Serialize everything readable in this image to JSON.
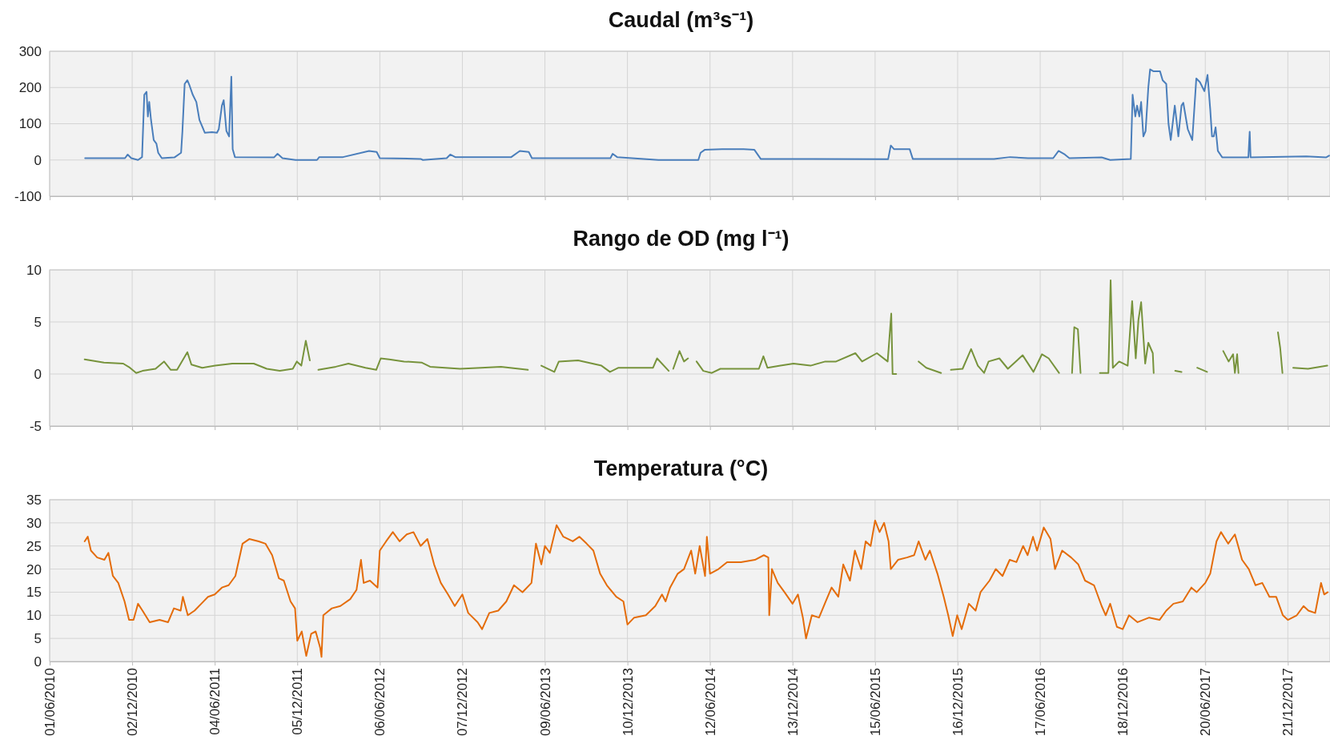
{
  "chart_data": [
    {
      "type": "line",
      "title": "Caudal (m³s⁻¹)",
      "tick_labels": "y",
      "grid": true,
      "xlim": [
        "2010-06-01",
        "2018-03-25"
      ],
      "ylim": [
        -100,
        300
      ],
      "yticks": [
        -100,
        0,
        100,
        200,
        300
      ],
      "xticks": [
        {
          "value": "2010-06-01",
          "label": null
        },
        {
          "value": "2010-12-02",
          "label": null
        },
        {
          "value": "2011-06-04",
          "label": null
        },
        {
          "value": "2011-12-05",
          "label": null
        },
        {
          "value": "2012-06-06",
          "label": null
        },
        {
          "value": "2012-12-07",
          "label": null
        },
        {
          "value": "2013-06-09",
          "label": null
        },
        {
          "value": "2013-12-10",
          "label": null
        },
        {
          "value": "2014-06-12",
          "label": null
        },
        {
          "value": "2014-12-13",
          "label": null
        },
        {
          "value": "2015-06-15",
          "label": null
        },
        {
          "value": "2015-12-16",
          "label": null
        },
        {
          "value": "2016-06-17",
          "label": null
        },
        {
          "value": "2016-12-18",
          "label": null
        },
        {
          "value": "2017-06-20",
          "label": null
        },
        {
          "value": "2017-12-21",
          "label": null
        }
      ],
      "series": [
        {
          "color": "#4a7ebb",
          "x": [
            "2010-08-19",
            "2010-11-16",
            "2010-11-22",
            "2010-11-30",
            "2010-12-15",
            "2010-12-24",
            "2010-12-29",
            "2011-01-03",
            "2011-01-06",
            "2011-01-09",
            "2011-01-13",
            "2011-01-19",
            "2011-01-25",
            "2011-01-29",
            "2011-02-06",
            "2011-03-06",
            "2011-03-21",
            "2011-03-24",
            "2011-03-29",
            "2011-04-04",
            "2011-04-09",
            "2011-04-16",
            "2011-04-24",
            "2011-05-01",
            "2011-05-13",
            "2011-05-29",
            "2011-06-09",
            "2011-06-13",
            "2011-06-20",
            "2011-06-24",
            "2011-06-30",
            "2011-07-06",
            "2011-07-11",
            "2011-07-14",
            "2011-07-19",
            "2011-10-14",
            "2011-10-22",
            "2011-11-02",
            "2011-12-01",
            "2012-01-18",
            "2012-01-23",
            "2012-03-16",
            "2012-05-13",
            "2012-05-30",
            "2012-06-06",
            "2012-09-05",
            "2012-09-10",
            "2012-11-02",
            "2012-11-10",
            "2012-11-21",
            "2013-03-26",
            "2013-04-14",
            "2013-05-04",
            "2013-05-11",
            "2013-11-02",
            "2013-11-07",
            "2013-11-17",
            "2014-02-17",
            "2014-05-17",
            "2014-05-22",
            "2014-05-31",
            "2014-07-09",
            "2014-08-26",
            "2014-09-19",
            "2014-10-03",
            "2015-07-14",
            "2015-07-20",
            "2015-07-27",
            "2015-08-31",
            "2015-09-07",
            "2016-03-06",
            "2016-04-11",
            "2016-05-21",
            "2016-07-16",
            "2016-07-28",
            "2016-08-11",
            "2016-08-21",
            "2016-11-01",
            "2016-11-20",
            "2017-01-05",
            "2017-01-09",
            "2017-01-15",
            "2017-01-19",
            "2017-01-24",
            "2017-01-28",
            "2017-02-02",
            "2017-02-07",
            "2017-02-13",
            "2017-02-17",
            "2017-02-24",
            "2017-03-11",
            "2017-03-17",
            "2017-03-25",
            "2017-03-30",
            "2017-04-04",
            "2017-04-13",
            "2017-04-21",
            "2017-04-28",
            "2017-05-02",
            "2017-05-12",
            "2017-05-22",
            "2017-05-31",
            "2017-06-08",
            "2017-06-18",
            "2017-06-25",
            "2017-07-01",
            "2017-07-05",
            "2017-07-09",
            "2017-07-13",
            "2017-07-18",
            "2017-07-28",
            "2017-09-24",
            "2017-09-27",
            "2017-09-29",
            "2018-01-31",
            "2018-03-16",
            "2018-03-23"
          ],
          "values": [
            5,
            5,
            15,
            5,
            0,
            8,
            180,
            188,
            120,
            160,
            110,
            55,
            45,
            20,
            5,
            7,
            20,
            80,
            210,
            220,
            205,
            180,
            160,
            110,
            75,
            77,
            75,
            85,
            150,
            165,
            80,
            65,
            230,
            30,
            8,
            7,
            17,
            5,
            0,
            0,
            8,
            8,
            25,
            22,
            5,
            3,
            0,
            5,
            15,
            8,
            8,
            25,
            22,
            5,
            5,
            17,
            8,
            0,
            0,
            20,
            28,
            30,
            30,
            28,
            3,
            2,
            40,
            30,
            30,
            3,
            3,
            8,
            5,
            5,
            25,
            15,
            5,
            7,
            0,
            3,
            180,
            120,
            150,
            120,
            160,
            65,
            80,
            200,
            250,
            245,
            245,
            220,
            210,
            100,
            55,
            150,
            65,
            150,
            158,
            85,
            55,
            225,
            215,
            190,
            235,
            140,
            65,
            65,
            90,
            25,
            7,
            7,
            78,
            7,
            10,
            7,
            12
          ]
        }
      ]
    },
    {
      "type": "line",
      "title": "Rango de OD (mg l⁻¹)",
      "tick_labels": "y",
      "grid": true,
      "xlim": [
        "2010-06-01",
        "2018-03-25"
      ],
      "ylim": [
        -5,
        10
      ],
      "yticks": [
        -5,
        0,
        5,
        10
      ],
      "xticks": [
        {
          "value": "2010-06-01",
          "label": null
        },
        {
          "value": "2010-12-02",
          "label": null
        },
        {
          "value": "2011-06-04",
          "label": null
        },
        {
          "value": "2011-12-05",
          "label": null
        },
        {
          "value": "2012-06-06",
          "label": null
        },
        {
          "value": "2012-12-07",
          "label": null
        },
        {
          "value": "2013-06-09",
          "label": null
        },
        {
          "value": "2013-12-10",
          "label": null
        },
        {
          "value": "2014-06-12",
          "label": null
        },
        {
          "value": "2014-12-13",
          "label": null
        },
        {
          "value": "2015-06-15",
          "label": null
        },
        {
          "value": "2015-12-16",
          "label": null
        },
        {
          "value": "2016-06-17",
          "label": null
        },
        {
          "value": "2016-12-18",
          "label": null
        },
        {
          "value": "2017-06-20",
          "label": null
        },
        {
          "value": "2017-12-21",
          "label": null
        }
      ],
      "series": [
        {
          "color": "#77933c",
          "x": [
            "2010-08-18",
            "2010-09-30",
            "2010-11-12",
            "2010-11-27",
            "2010-12-11",
            "2010-12-25",
            "2011-01-23",
            "2011-02-11",
            "2011-02-26",
            "2011-03-12",
            "2011-04-04",
            "2011-04-13",
            "2011-05-07",
            "2011-06-05",
            "2011-07-13",
            "2011-08-30",
            "2011-09-28",
            "2011-10-27",
            "2011-11-25",
            "2011-12-04",
            "2011-12-14",
            "2011-12-24",
            "2012-01-02",
            "2012-01-11",
            "2012-01-21",
            "2012-02-29",
            "2012-03-28",
            "2012-05-05",
            "2012-05-29",
            "2012-06-08",
            "2012-06-27",
            "2012-07-30",
            "2012-09-07",
            "2012-09-26",
            "2012-12-02",
            "2013-01-18",
            "2013-03-03",
            "2013-05-02",
            "2013-05-16",
            "2013-06-01",
            "2013-06-30",
            "2013-07-10",
            "2013-08-22",
            "2013-10-13",
            "2013-11-01",
            "2013-11-20",
            "2013-12-29",
            "2014-02-05",
            "2014-02-14",
            "2014-03-12",
            "2014-03-17",
            "2014-03-22",
            "2014-04-05",
            "2014-04-15",
            "2014-04-24",
            "2014-05-03",
            "2014-05-13",
            "2014-05-28",
            "2014-06-16",
            "2014-07-05",
            "2014-09-29",
            "2014-10-09",
            "2014-10-18",
            "2014-11-16",
            "2014-12-15",
            "2015-01-22",
            "2015-02-24",
            "2015-03-20",
            "2015-05-02",
            "2015-05-17",
            "2015-06-19",
            "2015-07-13",
            "2015-07-21",
            "2015-07-24",
            "2015-08-01",
            "2015-08-25",
            "2015-09-20",
            "2015-10-07",
            "2015-11-09",
            "2015-11-20",
            "2015-12-01",
            "2015-12-27",
            "2016-01-15",
            "2016-01-30",
            "2016-02-13",
            "2016-02-23",
            "2016-03-18",
            "2016-04-06",
            "2016-05-09",
            "2016-06-02",
            "2016-06-21",
            "2016-07-06",
            "2016-07-29",
            "2016-08-12",
            "2016-08-27",
            "2016-09-01",
            "2016-09-09",
            "2016-09-15",
            "2016-10-10",
            "2016-10-28",
            "2016-11-16",
            "2016-11-21",
            "2016-11-26",
            "2016-12-10",
            "2016-12-29",
            "2017-01-08",
            "2017-01-16",
            "2017-01-22",
            "2017-01-28",
            "2017-02-06",
            "2017-02-13",
            "2017-02-23",
            "2017-02-25",
            "2017-03-20",
            "2017-04-14",
            "2017-04-28",
            "2017-05-15",
            "2017-06-02",
            "2017-06-24",
            "2017-07-12",
            "2017-07-30",
            "2017-08-11",
            "2017-08-21",
            "2017-08-25",
            "2017-08-30",
            "2017-09-02",
            "2017-10-20",
            "2017-11-29",
            "2017-12-04",
            "2017-12-09",
            "2017-12-20",
            "2018-01-02",
            "2018-02-04",
            "2018-03-19"
          ],
          "values": [
            1.4,
            1.1,
            1.0,
            0.6,
            0.1,
            0.3,
            0.5,
            1.2,
            0.4,
            0.4,
            2.1,
            0.9,
            0.6,
            0.8,
            1.0,
            1.0,
            0.5,
            0.3,
            0.5,
            1.2,
            0.8,
            3.2,
            1.3,
            null,
            0.4,
            0.7,
            1.0,
            0.6,
            0.4,
            1.5,
            1.4,
            1.2,
            1.1,
            0.7,
            0.5,
            0.6,
            0.7,
            0.4,
            null,
            0.8,
            0.2,
            1.2,
            1.3,
            0.8,
            0.2,
            0.6,
            0.6,
            0.6,
            1.5,
            0.3,
            null,
            0.5,
            2.2,
            1.2,
            1.5,
            null,
            1.2,
            0.3,
            0.1,
            0.5,
            0.5,
            1.7,
            0.6,
            0.8,
            1.0,
            0.8,
            1.2,
            1.2,
            2.0,
            1.2,
            2.0,
            1.2,
            5.8,
            0,
            0,
            null,
            1.2,
            0.6,
            0.1,
            null,
            0.4,
            0.5,
            2.4,
            0.8,
            0.1,
            1.2,
            1.5,
            0.5,
            1.8,
            0.2,
            1.9,
            1.5,
            0.1,
            null,
            0.1,
            4.5,
            4.3,
            0.1,
            null,
            0.1,
            0.1,
            9.0,
            0.6,
            1.2,
            0.8,
            7.0,
            1.5,
            5.2,
            6.9,
            1.0,
            3.0,
            2.0,
            0.1,
            null,
            0.3,
            0.2,
            null,
            0.6,
            0.2,
            null,
            2.2,
            1.2,
            1.9,
            0.1,
            1.9,
            0.1,
            null,
            4.0,
            2.5,
            0.1,
            null,
            0.6,
            0.5,
            0.8
          ]
        }
      ]
    },
    {
      "type": "line",
      "title": "Temperatura (°C)",
      "grid": true,
      "xlim": [
        "2010-06-01",
        "2018-03-25"
      ],
      "ylim": [
        0,
        35
      ],
      "yticks": [
        0,
        5,
        10,
        15,
        20,
        25,
        30,
        35
      ],
      "xticks": [
        {
          "value": "2010-06-01",
          "label": "01/06/2010"
        },
        {
          "value": "2010-12-02",
          "label": "02/12/2010"
        },
        {
          "value": "2011-06-04",
          "label": "04/06/2011"
        },
        {
          "value": "2011-12-05",
          "label": "05/12/2011"
        },
        {
          "value": "2012-06-06",
          "label": "06/06/2012"
        },
        {
          "value": "2012-12-07",
          "label": "07/12/2012"
        },
        {
          "value": "2013-06-09",
          "label": "09/06/2013"
        },
        {
          "value": "2013-12-10",
          "label": "10/12/2013"
        },
        {
          "value": "2014-06-12",
          "label": "12/06/2014"
        },
        {
          "value": "2014-12-13",
          "label": "13/12/2014"
        },
        {
          "value": "2015-06-15",
          "label": "15/06/2015"
        },
        {
          "value": "2015-12-16",
          "label": "16/12/2015"
        },
        {
          "value": "2016-06-17",
          "label": "17/06/2016"
        },
        {
          "value": "2016-12-18",
          "label": "18/12/2016"
        },
        {
          "value": "2017-06-20",
          "label": "20/06/2017"
        },
        {
          "value": "2017-12-21",
          "label": "21/12/2017"
        }
      ],
      "series": [
        {
          "color": "#e46c0a",
          "x": [
            "2010-08-18",
            "2010-08-25",
            "2010-09-01",
            "2010-09-15",
            "2010-10-01",
            "2010-10-10",
            "2010-10-20",
            "2010-11-01",
            "2010-11-15",
            "2010-11-25",
            "2010-12-05",
            "2010-12-15",
            "2010-12-25",
            "2011-01-10",
            "2011-02-01",
            "2011-02-20",
            "2011-03-05",
            "2011-03-20",
            "2011-03-25",
            "2011-04-05",
            "2011-04-20",
            "2011-05-05",
            "2011-05-20",
            "2011-06-04",
            "2011-06-20",
            "2011-07-05",
            "2011-07-20",
            "2011-08-05",
            "2011-08-20",
            "2011-09-10",
            "2011-09-25",
            "2011-10-10",
            "2011-10-25",
            "2011-11-05",
            "2011-11-20",
            "2011-11-30",
            "2011-12-05",
            "2011-12-15",
            "2011-12-25",
            "2012-01-05",
            "2012-01-15",
            "2012-01-25",
            "2012-01-28",
            "2012-02-01",
            "2012-02-20",
            "2012-03-10",
            "2012-04-01",
            "2012-04-15",
            "2012-04-25",
            "2012-05-01",
            "2012-05-15",
            "2012-06-01",
            "2012-06-06",
            "2012-06-20",
            "2012-07-05",
            "2012-07-20",
            "2012-08-05",
            "2012-08-20",
            "2012-09-05",
            "2012-09-20",
            "2012-10-05",
            "2012-10-20",
            "2012-11-05",
            "2012-11-20",
            "2012-12-07",
            "2012-12-20",
            "2013-01-10",
            "2013-01-20",
            "2013-02-05",
            "2013-02-25",
            "2013-03-15",
            "2013-04-01",
            "2013-04-20",
            "2013-05-10",
            "2013-05-20",
            "2013-06-01",
            "2013-06-09",
            "2013-06-20",
            "2013-07-05",
            "2013-07-20",
            "2013-08-10",
            "2013-08-25",
            "2013-09-10",
            "2013-09-25",
            "2013-10-10",
            "2013-10-25",
            "2013-11-15",
            "2013-12-01",
            "2013-12-10",
            "2013-12-25",
            "2014-01-20",
            "2014-02-10",
            "2014-02-25",
            "2014-03-05",
            "2014-03-15",
            "2014-04-01",
            "2014-04-15",
            "2014-05-01",
            "2014-05-10",
            "2014-05-20",
            "2014-06-01",
            "2014-06-05",
            "2014-06-12",
            "2014-07-01",
            "2014-07-20",
            "2014-08-20",
            "2014-09-20",
            "2014-10-10",
            "2014-10-20",
            "2014-10-22",
            "2014-10-28",
            "2014-11-10",
            "2014-11-25",
            "2014-12-13",
            "2014-12-25",
            "2015-01-05",
            "2015-01-12",
            "2015-01-25",
            "2015-02-10",
            "2015-02-25",
            "2015-03-10",
            "2015-03-25",
            "2015-04-05",
            "2015-04-20",
            "2015-05-01",
            "2015-05-15",
            "2015-05-25",
            "2015-06-05",
            "2015-06-15",
            "2015-06-25",
            "2015-07-05",
            "2015-07-15",
            "2015-07-20",
            "2015-08-05",
            "2015-08-25",
            "2015-09-10",
            "2015-09-20",
            "2015-10-05",
            "2015-10-15",
            "2015-11-01",
            "2015-11-15",
            "2015-11-25",
            "2015-12-05",
            "2015-12-15",
            "2015-12-25",
            "2016-01-10",
            "2016-01-25",
            "2016-02-05",
            "2016-02-25",
            "2016-03-10",
            "2016-03-25",
            "2016-04-10",
            "2016-04-25",
            "2016-05-10",
            "2016-05-20",
            "2016-06-01",
            "2016-06-10",
            "2016-06-25",
            "2016-07-10",
            "2016-07-20",
            "2016-08-05",
            "2016-08-25",
            "2016-09-10",
            "2016-09-25",
            "2016-10-15",
            "2016-11-01",
            "2016-11-10",
            "2016-11-20",
            "2016-12-05",
            "2016-12-18",
            "2017-01-01",
            "2017-01-20",
            "2017-02-15",
            "2017-03-10",
            "2017-03-25",
            "2017-04-10",
            "2017-05-01",
            "2017-05-20",
            "2017-06-01",
            "2017-06-20",
            "2017-07-01",
            "2017-07-15",
            "2017-07-25",
            "2017-08-10",
            "2017-08-25",
            "2017-09-10",
            "2017-09-25",
            "2017-10-10",
            "2017-10-25",
            "2017-11-10",
            "2017-11-25",
            "2017-12-10",
            "2017-12-21",
            "2018-01-10",
            "2018-01-25",
            "2018-02-05",
            "2018-02-20",
            "2018-03-05",
            "2018-03-12",
            "2018-03-20"
          ],
          "values": [
            26,
            27,
            24,
            22.5,
            22,
            23.5,
            18.5,
            17,
            13,
            9,
            9,
            12.5,
            11,
            8.5,
            9,
            8.5,
            11.5,
            11,
            14,
            10,
            11,
            12.5,
            14,
            14.5,
            16,
            16.5,
            18.5,
            25.5,
            26.5,
            26,
            25.5,
            23,
            18,
            17.5,
            13,
            11.5,
            4.5,
            6.5,
            1.2,
            6,
            6.5,
            3,
            1,
            10,
            11.5,
            12,
            13.5,
            15.5,
            22,
            17,
            17.5,
            16,
            24,
            26,
            28,
            26,
            27.5,
            28,
            25,
            26.5,
            21,
            17,
            14.5,
            12,
            14.5,
            10.5,
            8.5,
            7,
            10.5,
            11,
            13,
            16.5,
            15,
            17,
            25.5,
            21,
            25,
            23.5,
            29.5,
            27,
            26,
            27,
            25.5,
            24,
            19,
            16.5,
            14,
            13,
            8,
            9.5,
            10,
            12,
            14.5,
            13,
            16,
            19,
            20,
            24,
            19,
            25,
            18.5,
            27,
            19,
            20,
            21.5,
            21.5,
            22,
            23,
            22.5,
            10,
            20,
            17,
            15,
            12.5,
            14.5,
            9.5,
            5,
            10,
            9.5,
            13,
            16,
            14,
            21,
            17.5,
            24,
            20,
            26,
            25,
            30.5,
            28,
            30,
            26,
            20,
            22,
            22.5,
            23,
            26,
            22,
            24,
            19,
            14,
            10,
            5.5,
            10,
            7,
            12.5,
            11,
            15,
            17.5,
            20,
            18.5,
            22,
            21.5,
            25,
            23,
            27,
            24,
            29,
            26.5,
            20,
            24,
            22.5,
            21,
            17.5,
            16.5,
            12,
            10,
            12.5,
            7.5,
            7,
            10,
            8.5,
            9.5,
            9,
            11,
            12.5,
            13,
            16,
            15,
            17,
            19,
            26,
            28,
            25.5,
            27.5,
            22,
            20,
            16.5,
            17,
            14,
            14,
            10,
            9,
            10,
            12,
            11,
            10.5,
            17,
            14.5,
            15
          ]
        }
      ]
    }
  ]
}
